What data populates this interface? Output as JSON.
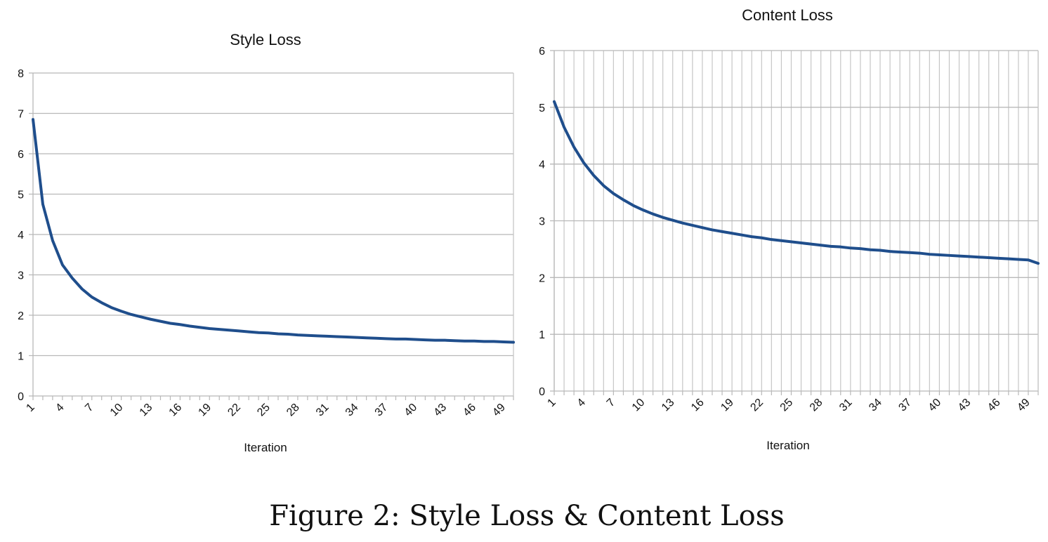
{
  "caption": "Figure 2: Style Loss & Content Loss",
  "chart_data": [
    {
      "type": "line",
      "title": "Style Loss",
      "xlabel": "Iteration",
      "ylabel": "",
      "ylim": [
        0,
        8
      ],
      "yticks": [
        0,
        1,
        2,
        3,
        4,
        5,
        6,
        7,
        8
      ],
      "xlim": [
        1,
        50
      ],
      "xtick_labels": [
        "1",
        "4",
        "7",
        "10",
        "13",
        "16",
        "19",
        "22",
        "25",
        "28",
        "31",
        "34",
        "37",
        "40",
        "43",
        "46",
        "49"
      ],
      "vertical_grid": false,
      "horizontal_grid": true,
      "line_color": "#1f4e8c",
      "series": [
        {
          "x": [
            1,
            2,
            3,
            4,
            5,
            6,
            7,
            8,
            9,
            10,
            11,
            12,
            13,
            14,
            15,
            16,
            17,
            18,
            19,
            20,
            21,
            22,
            23,
            24,
            25,
            26,
            27,
            28,
            29,
            30,
            31,
            32,
            33,
            34,
            35,
            36,
            37,
            38,
            39,
            40,
            41,
            42,
            43,
            44,
            45,
            46,
            47,
            48,
            49,
            50
          ],
          "values": [
            6.85,
            4.75,
            3.85,
            3.25,
            2.92,
            2.65,
            2.45,
            2.31,
            2.19,
            2.1,
            2.02,
            1.96,
            1.9,
            1.85,
            1.8,
            1.77,
            1.73,
            1.7,
            1.67,
            1.65,
            1.63,
            1.61,
            1.59,
            1.57,
            1.56,
            1.54,
            1.53,
            1.51,
            1.5,
            1.49,
            1.48,
            1.47,
            1.46,
            1.45,
            1.44,
            1.43,
            1.42,
            1.41,
            1.41,
            1.4,
            1.39,
            1.38,
            1.38,
            1.37,
            1.36,
            1.36,
            1.35,
            1.35,
            1.34,
            1.33
          ]
        }
      ]
    },
    {
      "type": "line",
      "title": "Content Loss",
      "xlabel": "Iteration",
      "ylabel": "",
      "ylim": [
        0,
        6
      ],
      "yticks": [
        0,
        1,
        2,
        3,
        4,
        5,
        6
      ],
      "xlim": [
        1,
        50
      ],
      "xtick_labels": [
        "1",
        "4",
        "7",
        "10",
        "13",
        "16",
        "19",
        "22",
        "25",
        "28",
        "31",
        "34",
        "37",
        "40",
        "43",
        "46",
        "49"
      ],
      "vertical_grid": true,
      "horizontal_grid": true,
      "line_color": "#1f4e8c",
      "series": [
        {
          "x": [
            1,
            2,
            3,
            4,
            5,
            6,
            7,
            8,
            9,
            10,
            11,
            12,
            13,
            14,
            15,
            16,
            17,
            18,
            19,
            20,
            21,
            22,
            23,
            24,
            25,
            26,
            27,
            28,
            29,
            30,
            31,
            32,
            33,
            34,
            35,
            36,
            37,
            38,
            39,
            40,
            41,
            42,
            43,
            44,
            45,
            46,
            47,
            48,
            49,
            50
          ],
          "values": [
            5.1,
            4.65,
            4.3,
            4.02,
            3.8,
            3.62,
            3.48,
            3.37,
            3.27,
            3.19,
            3.12,
            3.06,
            3.01,
            2.96,
            2.92,
            2.88,
            2.84,
            2.81,
            2.78,
            2.75,
            2.72,
            2.7,
            2.67,
            2.65,
            2.63,
            2.61,
            2.59,
            2.57,
            2.55,
            2.54,
            2.52,
            2.51,
            2.49,
            2.48,
            2.46,
            2.45,
            2.44,
            2.43,
            2.41,
            2.4,
            2.39,
            2.38,
            2.37,
            2.36,
            2.35,
            2.34,
            2.33,
            2.32,
            2.31,
            2.25
          ]
        }
      ]
    }
  ]
}
